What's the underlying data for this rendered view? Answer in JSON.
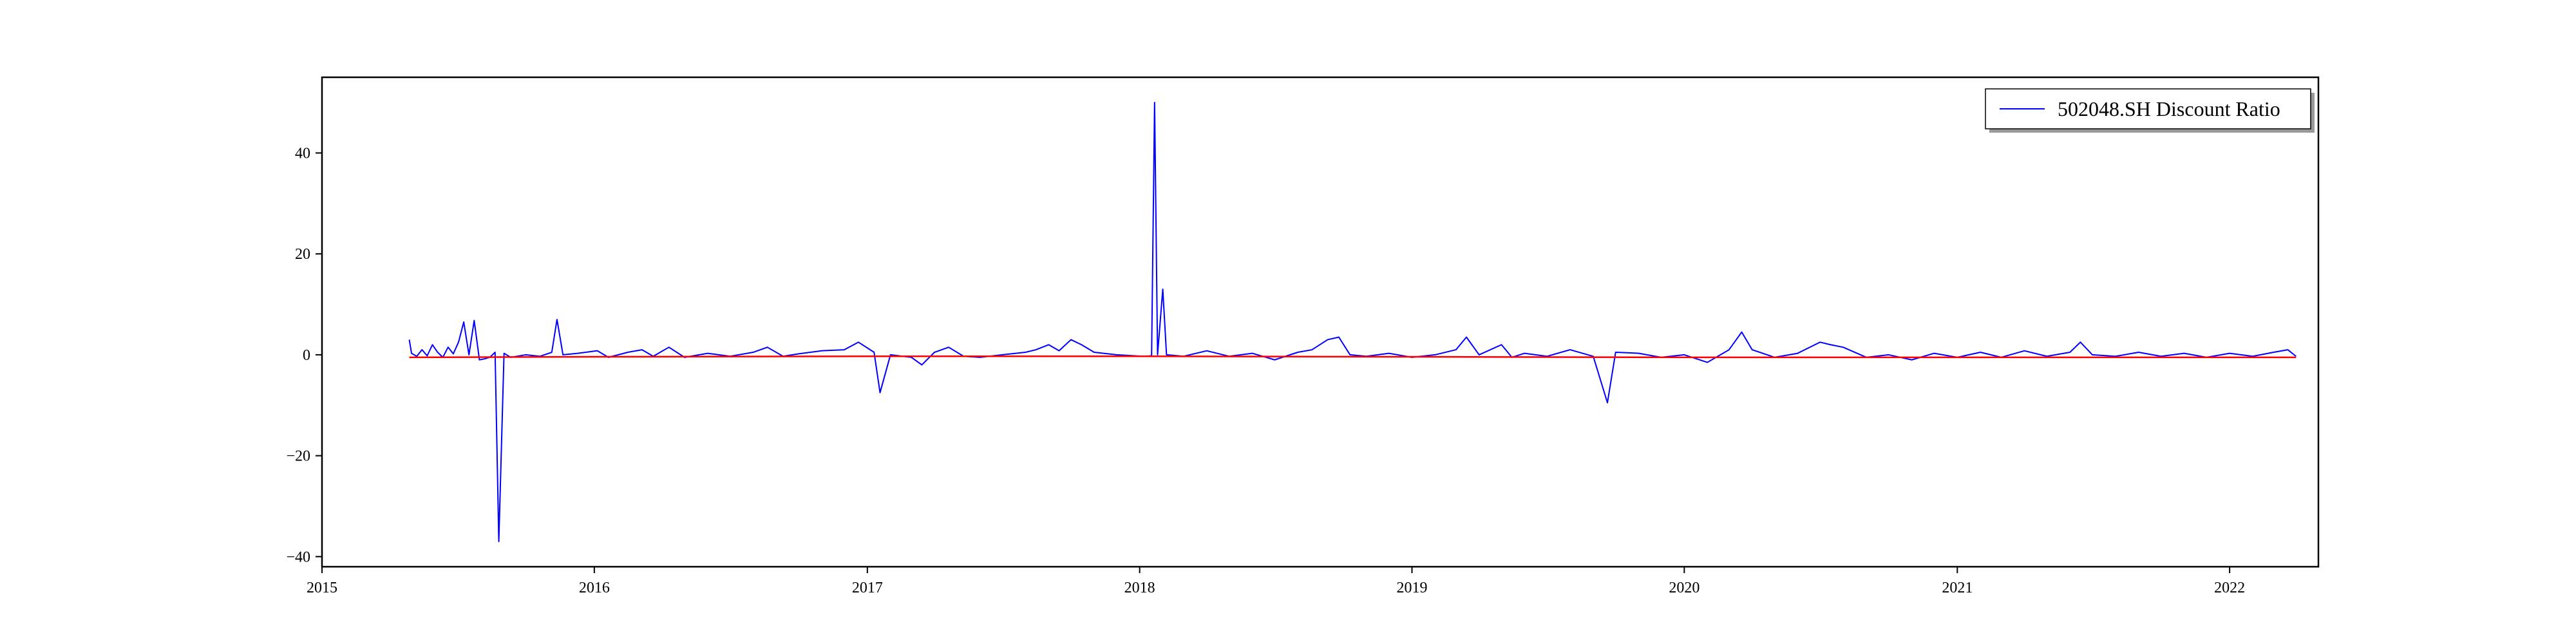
{
  "chart_data": {
    "type": "line",
    "x_type": "date",
    "xlim": [
      "2015-01-01",
      "2022-04-30"
    ],
    "ylim": [
      -42,
      55
    ],
    "x_ticks": [
      {
        "value": "2015-01-01",
        "label": "2015"
      },
      {
        "value": "2016-01-01",
        "label": "2016"
      },
      {
        "value": "2017-01-01",
        "label": "2017"
      },
      {
        "value": "2018-01-01",
        "label": "2018"
      },
      {
        "value": "2019-01-01",
        "label": "2019"
      },
      {
        "value": "2020-01-01",
        "label": "2020"
      },
      {
        "value": "2021-01-01",
        "label": "2021"
      },
      {
        "value": "2022-01-01",
        "label": "2022"
      }
    ],
    "y_ticks": [
      {
        "value": -40,
        "label": "−40"
      },
      {
        "value": -20,
        "label": "−20"
      },
      {
        "value": 0,
        "label": "0"
      },
      {
        "value": 20,
        "label": "20"
      },
      {
        "value": 40,
        "label": "40"
      }
    ],
    "legend": {
      "placement": "top-right"
    },
    "grid": false,
    "series": [
      {
        "name": "502048.SH Discount Ratio",
        "color": "#0000ff",
        "in_legend": true,
        "points": [
          [
            "2015-04-28",
            3.0
          ],
          [
            "2015-05-01",
            0.3
          ],
          [
            "2015-05-08",
            -0.3
          ],
          [
            "2015-05-15",
            1.0
          ],
          [
            "2015-05-22",
            -0.2
          ],
          [
            "2015-05-29",
            2.0
          ],
          [
            "2015-06-05",
            0.5
          ],
          [
            "2015-06-12",
            -0.5
          ],
          [
            "2015-06-19",
            1.5
          ],
          [
            "2015-06-26",
            0.2
          ],
          [
            "2015-07-03",
            2.5
          ],
          [
            "2015-07-10",
            6.5
          ],
          [
            "2015-07-17",
            0.0
          ],
          [
            "2015-07-24",
            6.8
          ],
          [
            "2015-07-31",
            -1.0
          ],
          [
            "2015-08-07",
            -0.8
          ],
          [
            "2015-08-14",
            -0.5
          ],
          [
            "2015-08-21",
            0.5
          ],
          [
            "2015-08-26",
            -37.0
          ],
          [
            "2015-09-02",
            0.3
          ],
          [
            "2015-09-11",
            -0.5
          ],
          [
            "2015-10-01",
            0.0
          ],
          [
            "2015-10-20",
            -0.3
          ],
          [
            "2015-11-05",
            0.5
          ],
          [
            "2015-11-12",
            7.0
          ],
          [
            "2015-11-20",
            0.0
          ],
          [
            "2015-12-10",
            0.3
          ],
          [
            "2016-01-05",
            0.8
          ],
          [
            "2016-01-20",
            -0.5
          ],
          [
            "2016-02-15",
            0.5
          ],
          [
            "2016-03-05",
            1.0
          ],
          [
            "2016-03-20",
            -0.3
          ],
          [
            "2016-04-10",
            1.5
          ],
          [
            "2016-05-01",
            -0.5
          ],
          [
            "2016-06-01",
            0.3
          ],
          [
            "2016-07-01",
            -0.3
          ],
          [
            "2016-08-01",
            0.5
          ],
          [
            "2016-08-20",
            1.5
          ],
          [
            "2016-09-10",
            -0.3
          ],
          [
            "2016-10-01",
            0.2
          ],
          [
            "2016-11-01",
            0.8
          ],
          [
            "2016-12-01",
            1.0
          ],
          [
            "2016-12-20",
            2.5
          ],
          [
            "2017-01-10",
            0.5
          ],
          [
            "2017-01-18",
            -7.5
          ],
          [
            "2017-02-01",
            0.0
          ],
          [
            "2017-03-01",
            -0.5
          ],
          [
            "2017-03-15",
            -2.0
          ],
          [
            "2017-04-01",
            0.5
          ],
          [
            "2017-04-20",
            1.5
          ],
          [
            "2017-05-10",
            -0.3
          ],
          [
            "2017-06-01",
            -0.5
          ],
          [
            "2017-07-01",
            0.0
          ],
          [
            "2017-08-01",
            0.5
          ],
          [
            "2017-08-15",
            1.0
          ],
          [
            "2017-09-01",
            2.0
          ],
          [
            "2017-09-15",
            0.8
          ],
          [
            "2017-10-01",
            3.0
          ],
          [
            "2017-10-15",
            2.0
          ],
          [
            "2017-11-01",
            0.5
          ],
          [
            "2017-12-01",
            0.0
          ],
          [
            "2018-01-05",
            -0.3
          ],
          [
            "2018-01-17",
            -0.2
          ],
          [
            "2018-01-21",
            50.0
          ],
          [
            "2018-01-25",
            0.0
          ],
          [
            "2018-02-01",
            13.0
          ],
          [
            "2018-02-06",
            0.0
          ],
          [
            "2018-03-01",
            -0.3
          ],
          [
            "2018-04-01",
            0.8
          ],
          [
            "2018-05-01",
            -0.3
          ],
          [
            "2018-06-01",
            0.3
          ],
          [
            "2018-07-01",
            -1.0
          ],
          [
            "2018-08-01",
            0.5
          ],
          [
            "2018-08-20",
            1.0
          ],
          [
            "2018-09-10",
            3.0
          ],
          [
            "2018-09-25",
            3.5
          ],
          [
            "2018-10-10",
            0.0
          ],
          [
            "2018-11-01",
            -0.3
          ],
          [
            "2018-12-01",
            0.3
          ],
          [
            "2019-01-01",
            -0.5
          ],
          [
            "2019-02-01",
            0.0
          ],
          [
            "2019-03-01",
            1.0
          ],
          [
            "2019-03-15",
            3.5
          ],
          [
            "2019-04-01",
            0.0
          ],
          [
            "2019-05-01",
            2.0
          ],
          [
            "2019-05-15",
            -0.5
          ],
          [
            "2019-06-01",
            0.3
          ],
          [
            "2019-07-01",
            -0.3
          ],
          [
            "2019-08-01",
            1.0
          ],
          [
            "2019-09-01",
            -0.3
          ],
          [
            "2019-09-20",
            -9.5
          ],
          [
            "2019-10-01",
            0.5
          ],
          [
            "2019-11-01",
            0.3
          ],
          [
            "2019-12-01",
            -0.5
          ],
          [
            "2020-01-01",
            0.0
          ],
          [
            "2020-02-01",
            -1.5
          ],
          [
            "2020-03-01",
            1.0
          ],
          [
            "2020-03-18",
            4.5
          ],
          [
            "2020-04-01",
            1.0
          ],
          [
            "2020-05-01",
            -0.5
          ],
          [
            "2020-06-01",
            0.3
          ],
          [
            "2020-07-01",
            2.5
          ],
          [
            "2020-07-15",
            2.0
          ],
          [
            "2020-08-01",
            1.5
          ],
          [
            "2020-09-01",
            -0.5
          ],
          [
            "2020-10-01",
            0.0
          ],
          [
            "2020-11-01",
            -1.0
          ],
          [
            "2020-12-01",
            0.3
          ],
          [
            "2021-01-01",
            -0.5
          ],
          [
            "2021-02-01",
            0.5
          ],
          [
            "2021-03-01",
            -0.5
          ],
          [
            "2021-04-01",
            0.8
          ],
          [
            "2021-05-01",
            -0.3
          ],
          [
            "2021-06-01",
            0.5
          ],
          [
            "2021-06-15",
            2.5
          ],
          [
            "2021-07-01",
            0.0
          ],
          [
            "2021-08-01",
            -0.3
          ],
          [
            "2021-09-01",
            0.5
          ],
          [
            "2021-10-01",
            -0.3
          ],
          [
            "2021-11-01",
            0.3
          ],
          [
            "2021-12-01",
            -0.5
          ],
          [
            "2022-01-01",
            0.3
          ],
          [
            "2022-02-01",
            -0.3
          ],
          [
            "2022-03-01",
            0.5
          ],
          [
            "2022-03-20",
            1.0
          ],
          [
            "2022-03-31",
            -0.3
          ]
        ]
      },
      {
        "color": "#ff0000",
        "in_legend": false,
        "points": [
          [
            "2015-04-28",
            -0.5
          ],
          [
            "2016-01-01",
            -0.4
          ],
          [
            "2017-01-01",
            -0.3
          ],
          [
            "2018-01-01",
            -0.3
          ],
          [
            "2019-01-01",
            -0.4
          ],
          [
            "2020-01-01",
            -0.5
          ],
          [
            "2021-01-01",
            -0.5
          ],
          [
            "2022-03-31",
            -0.5
          ]
        ]
      }
    ]
  }
}
